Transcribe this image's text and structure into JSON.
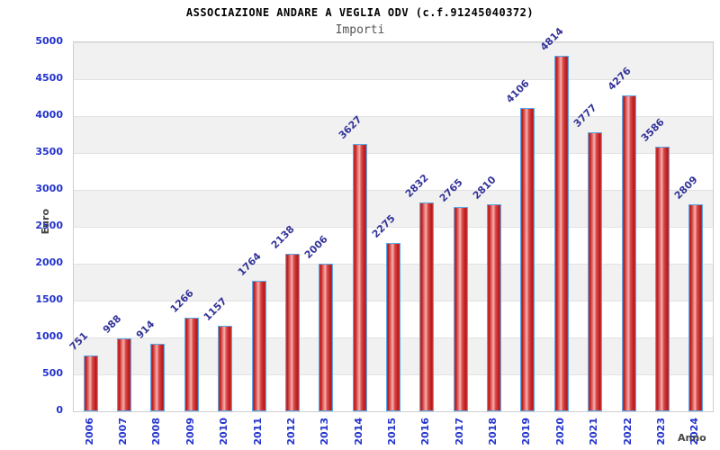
{
  "chart_data": {
    "type": "bar",
    "title": "ASSOCIAZIONE ANDARE A VEGLIA ODV (c.f.91245040372)",
    "subtitle": "Importi",
    "xlabel": "Anno",
    "ylabel": "Euro",
    "categories": [
      "2006",
      "2007",
      "2008",
      "2009",
      "2010",
      "2011",
      "2012",
      "2013",
      "2014",
      "2015",
      "2016",
      "2017",
      "2018",
      "2019",
      "2020",
      "2021",
      "2022",
      "2023",
      "2024"
    ],
    "values": [
      751,
      988,
      914,
      1266,
      1157,
      1764,
      2138,
      2006,
      3627,
      2275,
      2832,
      2765,
      2810,
      4106,
      4814,
      3777,
      4276,
      3586,
      2809
    ],
    "ylim": [
      0,
      5000
    ],
    "ytick_step": 500,
    "y_ticks": [
      0,
      500,
      1000,
      1500,
      2000,
      2500,
      3000,
      3500,
      4000,
      4500,
      5000
    ],
    "grid": true,
    "legend_position": "none",
    "colors": {
      "bar_fill_dark": "#b81515",
      "bar_fill_light": "#f7b3b1",
      "bar_border": "#5aa7e8",
      "tick_label": "#2333cc",
      "value_label": "#333399",
      "axis_label": "#444444",
      "title": "#000000",
      "subtitle": "#555555",
      "band_gray": "#f1f1f1",
      "band_white": "#ffffff",
      "gridline": "#e2e2e2",
      "plot_border": "#cfcfcf"
    }
  }
}
